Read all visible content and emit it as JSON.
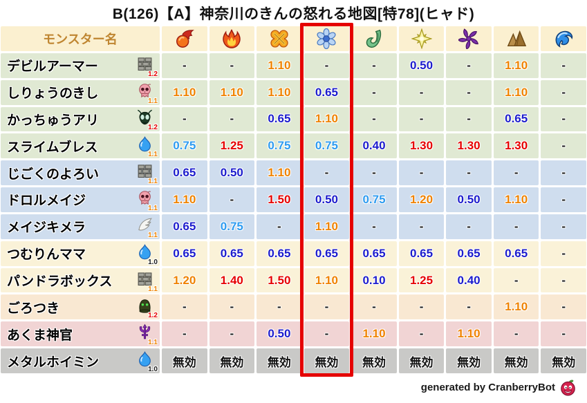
{
  "title": "B(126)【A】神奈川のきんの怒れる地図[特78](ヒャド)",
  "chart_data": {
    "type": "table",
    "title": "B(126)【A】神奈川のきんの怒れる地図[特78](ヒャド)",
    "monster_column_header": "モンスター名",
    "element_columns": [
      "fireball",
      "flame",
      "explosion",
      "snowflake",
      "tornado",
      "star",
      "pinwheel",
      "mountain",
      "wave"
    ],
    "highlighted_column_index": 3,
    "highlighted_element": "snowflake",
    "rows": [
      {
        "name": "デビルアーマー",
        "family": "brick",
        "family_multiplier": "1.2",
        "group": "green",
        "values": [
          "-",
          "-",
          "1.10",
          "-",
          "-",
          "0.50",
          "-",
          "1.10",
          "-"
        ]
      },
      {
        "name": "しりょうのきし",
        "family": "skull",
        "family_multiplier": "1.1",
        "group": "green",
        "values": [
          "1.10",
          "1.10",
          "1.10",
          "0.65",
          "-",
          "-",
          "-",
          "1.10",
          "-"
        ]
      },
      {
        "name": "かっちゅうアリ",
        "family": "bug",
        "family_multiplier": "1.2",
        "group": "green",
        "values": [
          "-",
          "-",
          "0.65",
          "1.10",
          "-",
          "-",
          "-",
          "0.65",
          "-"
        ]
      },
      {
        "name": "スライムブレス",
        "family": "slime",
        "family_multiplier": "1.1",
        "group": "green",
        "values": [
          "0.75",
          "1.25",
          "0.75",
          "0.75",
          "0.40",
          "1.30",
          "1.30",
          "1.30",
          "-"
        ]
      },
      {
        "name": "じごくのよろい",
        "family": "brick",
        "family_multiplier": "1.1",
        "group": "blue",
        "values": [
          "0.65",
          "0.50",
          "1.10",
          "-",
          "-",
          "-",
          "-",
          "-",
          "-"
        ]
      },
      {
        "name": "ドロルメイジ",
        "family": "skull",
        "family_multiplier": "1.1",
        "group": "blue",
        "values": [
          "1.10",
          "-",
          "1.50",
          "0.50",
          "0.75",
          "1.20",
          "0.50",
          "1.10",
          "-"
        ]
      },
      {
        "name": "メイジキメラ",
        "family": "wing",
        "family_multiplier": "1.1",
        "group": "blue",
        "values": [
          "0.65",
          "0.75",
          "-",
          "1.10",
          "-",
          "-",
          "-",
          "-",
          "-"
        ]
      },
      {
        "name": "つむりんママ",
        "family": "slime",
        "family_multiplier": "1.0",
        "group": "cream",
        "values": [
          "0.65",
          "0.65",
          "0.65",
          "0.65",
          "0.65",
          "0.65",
          "0.65",
          "0.65",
          "-"
        ]
      },
      {
        "name": "パンドラボックス",
        "family": "brick",
        "family_multiplier": "1.1",
        "group": "cream",
        "values": [
          "1.20",
          "1.40",
          "1.50",
          "1.10",
          "0.10",
          "1.25",
          "0.40",
          "-",
          "-"
        ]
      },
      {
        "name": "ごろつき",
        "family": "hood",
        "family_multiplier": "1.2",
        "group": "peach",
        "values": [
          "-",
          "-",
          "-",
          "-",
          "-",
          "-",
          "-",
          "1.10",
          "-"
        ]
      },
      {
        "name": "あくま神官",
        "family": "trident",
        "family_multiplier": "1.1",
        "group": "pink",
        "values": [
          "-",
          "-",
          "0.50",
          "-",
          "1.10",
          "-",
          "1.10",
          "-",
          "-"
        ]
      },
      {
        "name": "メタルホイミン",
        "family": "slime",
        "family_multiplier": "1.0",
        "group": "gray",
        "values": [
          "無効",
          "無効",
          "無効",
          "無効",
          "無効",
          "無効",
          "無効",
          "無効",
          "無効"
        ]
      }
    ]
  },
  "footer": {
    "credit": "generated by CranberryBot"
  },
  "colors": {
    "highlight_box": "#e50000",
    "value_strong_up": "#e60000",
    "value_up": "#ef8200",
    "value_down_light": "#2e9bf0",
    "value_down": "#1c1ccd",
    "header_bg": "#fbf0d0",
    "group_green": "#e0e9d3",
    "group_blue": "#cfddee",
    "group_cream": "#faf2d8",
    "group_peach": "#f9e8d2",
    "group_pink": "#f1d4d4",
    "group_gray": "#c9c9c7",
    "mult_1_2": "#e60000",
    "mult_1_1": "#ef8200",
    "mult_1_0": "#1a1a1a"
  }
}
